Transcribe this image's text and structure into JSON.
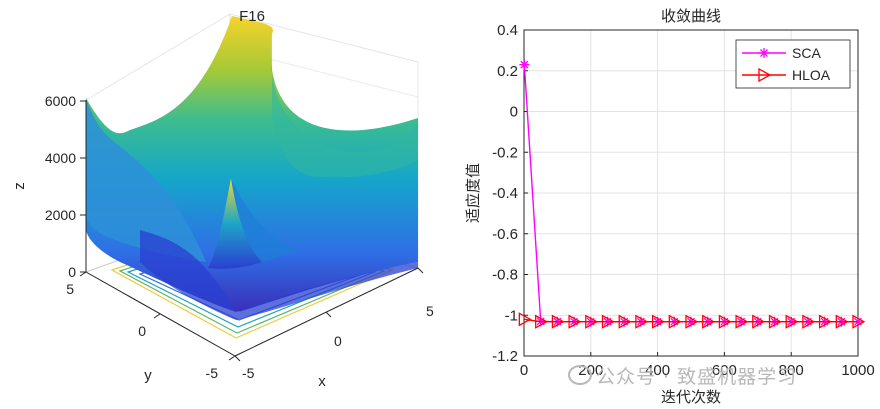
{
  "watermark": "公众号 · 致盛机器学习",
  "surface_plot": {
    "title": "F16",
    "xlabel": "x",
    "ylabel": "y",
    "zlabel": "z",
    "z_ticks": [
      "0",
      "2000",
      "4000",
      "6000"
    ],
    "x_ticks": [
      "-5",
      "0",
      "5"
    ],
    "y_ticks": [
      "-5",
      "0",
      "5"
    ]
  },
  "chart_data": {
    "type": "line",
    "title": "收敛曲线",
    "xlabel": "迭代次数",
    "ylabel": "适应度值",
    "xlim": [
      0,
      1000
    ],
    "ylim": [
      -1.2,
      0.4
    ],
    "x_ticks": [
      "0",
      "200",
      "400",
      "600",
      "800",
      "1000"
    ],
    "y_ticks": [
      "-1.2",
      "-1",
      "-0.8",
      "-0.6",
      "-0.4",
      "-0.2",
      "0",
      "0.2",
      "0.4"
    ],
    "grid": true,
    "legend_position": "top-right",
    "series": [
      {
        "name": "SCA",
        "color": "#ff00ff",
        "marker": "asterisk",
        "x": [
          1,
          50,
          100,
          150,
          200,
          250,
          300,
          350,
          400,
          450,
          500,
          550,
          600,
          650,
          700,
          750,
          800,
          850,
          900,
          950,
          1000
        ],
        "y": [
          0.23,
          -1.03,
          -1.0316,
          -1.0316,
          -1.0316,
          -1.0316,
          -1.0316,
          -1.0316,
          -1.0316,
          -1.0316,
          -1.0316,
          -1.0316,
          -1.0316,
          -1.0316,
          -1.0316,
          -1.0316,
          -1.0316,
          -1.0316,
          -1.0316,
          -1.0316,
          -1.0316
        ]
      },
      {
        "name": "HLOA",
        "color": "#ff0000",
        "marker": "triangle-right",
        "x": [
          1,
          50,
          100,
          150,
          200,
          250,
          300,
          350,
          400,
          450,
          500,
          550,
          600,
          650,
          700,
          750,
          800,
          850,
          900,
          950,
          1000
        ],
        "y": [
          -1.02,
          -1.0316,
          -1.0316,
          -1.0316,
          -1.0316,
          -1.0316,
          -1.0316,
          -1.0316,
          -1.0316,
          -1.0316,
          -1.0316,
          -1.0316,
          -1.0316,
          -1.0316,
          -1.0316,
          -1.0316,
          -1.0316,
          -1.0316,
          -1.0316,
          -1.0316,
          -1.0316
        ]
      }
    ]
  }
}
